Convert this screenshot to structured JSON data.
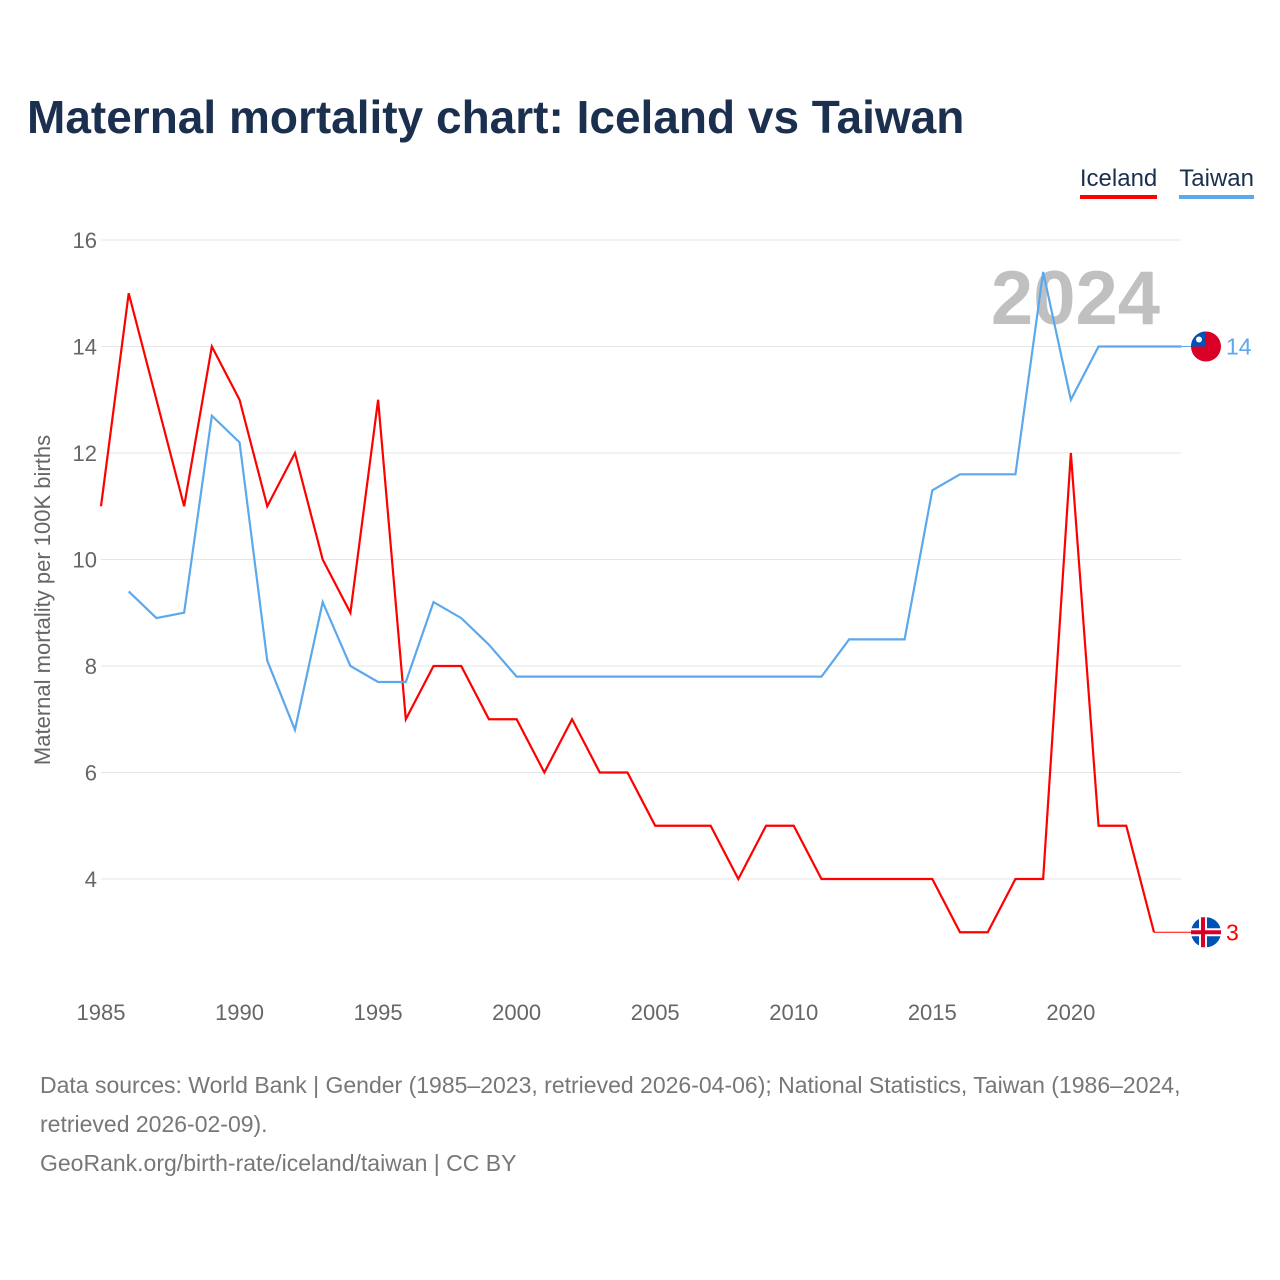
{
  "chart_data": {
    "type": "line",
    "title": "Maternal mortality chart: Iceland vs Taiwan",
    "ylabel": "Maternal mortality per 100K births",
    "xlabel": "",
    "ylim": [
      2,
      16
    ],
    "xlim": [
      1985,
      2024
    ],
    "yticks": [
      4,
      6,
      8,
      10,
      12,
      14,
      16
    ],
    "xticks": [
      1985,
      1990,
      1995,
      2000,
      2005,
      2010,
      2015,
      2020
    ],
    "grid": true,
    "legend_position": "top-right",
    "year_label": "2024",
    "series": [
      {
        "name": "Iceland",
        "color": "#ff0000",
        "end_label": "3",
        "x": [
          1985,
          1986,
          1987,
          1988,
          1989,
          1990,
          1991,
          1992,
          1993,
          1994,
          1995,
          1996,
          1997,
          1998,
          1999,
          2000,
          2001,
          2002,
          2003,
          2004,
          2005,
          2006,
          2007,
          2008,
          2009,
          2010,
          2011,
          2012,
          2013,
          2014,
          2015,
          2016,
          2017,
          2018,
          2019,
          2020,
          2021,
          2022,
          2023
        ],
        "values": [
          11,
          15,
          13,
          11,
          14,
          13,
          11,
          12,
          10,
          9,
          13,
          7,
          8,
          8,
          7,
          7,
          6,
          7,
          6,
          6,
          5,
          5,
          5,
          4,
          5,
          5,
          4,
          4,
          4,
          4,
          4,
          3,
          3,
          4,
          4,
          12,
          5,
          5,
          3
        ]
      },
      {
        "name": "Taiwan",
        "color": "#5ba8ec",
        "end_label": "14",
        "x": [
          1986,
          1987,
          1988,
          1989,
          1990,
          1991,
          1992,
          1993,
          1994,
          1995,
          1996,
          1997,
          1998,
          1999,
          2000,
          2001,
          2002,
          2003,
          2004,
          2005,
          2006,
          2007,
          2008,
          2009,
          2010,
          2011,
          2012,
          2013,
          2014,
          2015,
          2016,
          2017,
          2018,
          2019,
          2020,
          2021,
          2022,
          2023,
          2024
        ],
        "values": [
          9.4,
          8.9,
          9.0,
          12.7,
          12.2,
          8.1,
          6.8,
          9.2,
          8.0,
          7.7,
          7.7,
          9.2,
          8.9,
          8.4,
          7.8,
          7.8,
          7.8,
          7.8,
          7.8,
          7.8,
          7.8,
          7.8,
          7.8,
          7.8,
          7.8,
          7.8,
          8.5,
          8.5,
          8.5,
          11.3,
          11.6,
          11.6,
          11.6,
          15.4,
          13,
          14,
          14,
          14,
          14
        ]
      }
    ]
  },
  "footer": {
    "sources": "Data sources: World Bank | Gender (1985–2023, retrieved 2026-04-06); National Statistics, Taiwan (1986–2024, retrieved 2026-02-09).",
    "link": "GeoRank.org/birth-rate/iceland/taiwan | CC BY"
  }
}
